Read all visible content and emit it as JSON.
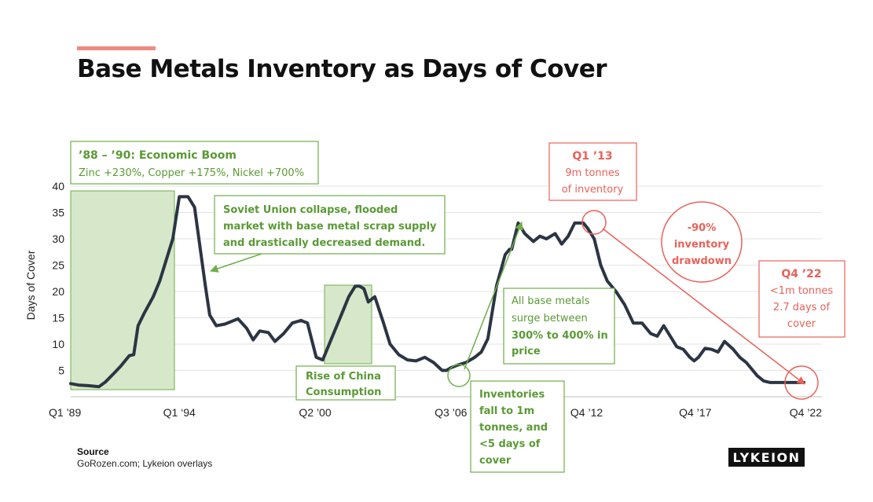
{
  "title": "Base Metals Inventory as Days of Cover",
  "source": {
    "label": "Source",
    "text": "GoRozen.com; Lykeion overlays"
  },
  "logo": "LYKEION",
  "colors": {
    "line": "#2B3544",
    "green": "#6FAE4A",
    "green_text": "#5A9A35",
    "green_fill": "#D6E8C9",
    "red": "#E8625A",
    "accent": "#EE8A80"
  },
  "chart_data": {
    "type": "line",
    "title": "Base Metals Inventory as Days of Cover",
    "ylabel": "Days of Cover",
    "xlabel": "",
    "ylim": [
      0,
      40
    ],
    "yticks": [
      5,
      10,
      15,
      20,
      25,
      30,
      35,
      40
    ],
    "grid": true,
    "xtick_labels": [
      {
        "label": "Q1 ’89",
        "year": 1989.0
      },
      {
        "label": "Q1 ‘94",
        "year": 1994.0
      },
      {
        "label": "Q2 ’00",
        "year": 2000.25
      },
      {
        "label": "Q3 ’06",
        "year": 2006.5
      },
      {
        "label": "Q4 ’12",
        "year": 2012.75
      },
      {
        "label": "Q4 ’17",
        "year": 2017.75
      },
      {
        "label": "Q4 ’22",
        "year": 2022.75
      }
    ],
    "series": [
      {
        "x": [
          1989.0,
          1989.4,
          1989.8,
          1990.3,
          1990.6,
          1991.0,
          1991.3,
          1991.7,
          1991.9,
          1992.1,
          1992.4,
          1992.8,
          1993.1,
          1993.4,
          1993.7,
          1994.0,
          1994.4,
          1994.7,
          1994.9,
          1995.2,
          1995.4,
          1995.7,
          1996.1,
          1996.7,
          1997.1,
          1997.4,
          1997.7,
          1998.1,
          1998.4,
          1998.8,
          1999.2,
          1999.6,
          1999.9,
          2000.3,
          2000.6,
          2000.9,
          2001.2,
          2001.5,
          2001.8,
          2002.1,
          2002.3,
          2002.5,
          2002.7,
          2003.0,
          2003.4,
          2003.7,
          2004.1,
          2004.5,
          2004.9,
          2005.3,
          2005.7,
          2006.1,
          2006.3,
          2006.5,
          2006.8,
          2007.2,
          2007.6,
          2007.9,
          2008.2,
          2008.4,
          2008.6,
          2008.8,
          2009.0,
          2009.2,
          2009.3,
          2009.6,
          2009.9,
          2010.3,
          2010.6,
          2010.9,
          2011.3,
          2011.6,
          2011.9,
          2012.2,
          2012.4,
          2012.6,
          2012.8,
          2013.1,
          2013.4,
          2013.7,
          2014.1,
          2014.5,
          2014.9,
          2015.3,
          2015.7,
          2016.0,
          2016.3,
          2016.6,
          2016.9,
          2017.2,
          2017.5,
          2017.7,
          2017.9,
          2018.2,
          2018.5,
          2018.8,
          2019.1,
          2019.5,
          2019.8,
          2020.1,
          2020.3,
          2020.6,
          2020.9,
          2021.2,
          2021.5,
          2021.9,
          2022.2,
          2022.5,
          2022.75
        ],
        "y": [
          2.5,
          2.2,
          2.1,
          1.9,
          2.8,
          4.5,
          5.8,
          7.8,
          8.0,
          13.5,
          16.0,
          19.0,
          22.0,
          26.0,
          30.0,
          38.0,
          38.0,
          36.0,
          30.0,
          21.0,
          15.5,
          13.5,
          13.8,
          14.8,
          13.0,
          10.8,
          12.5,
          12.2,
          10.5,
          12.0,
          14.0,
          14.5,
          14.0,
          7.5,
          7.0,
          10.0,
          13.0,
          16.0,
          19.0,
          21.0,
          21.0,
          20.5,
          18.0,
          19.0,
          14.0,
          10.0,
          8.0,
          7.0,
          6.8,
          7.5,
          6.5,
          5.0,
          5.0,
          5.5,
          6.0,
          6.5,
          7.5,
          8.5,
          11.0,
          16.0,
          21.0,
          24.0,
          27.0,
          28.0,
          28.0,
          33.0,
          31.0,
          29.5,
          30.5,
          30.0,
          31.0,
          29.0,
          30.5,
          33.0,
          33.0,
          33.0,
          32.0,
          30.0,
          25.0,
          22.0,
          20.0,
          17.5,
          14.0,
          14.0,
          12.0,
          11.5,
          13.5,
          11.5,
          9.5,
          9.0,
          7.5,
          6.8,
          7.5,
          9.2,
          9.0,
          8.5,
          10.5,
          9.0,
          7.5,
          6.5,
          5.5,
          4.0,
          3.0,
          2.7,
          2.7,
          2.7,
          2.7,
          2.7,
          2.7
        ]
      }
    ]
  },
  "annotations": {
    "boom": {
      "title": "’88 – ’90: Economic Boom",
      "text": "Zinc +230%, Copper +175%, Nickel +700%"
    },
    "soviet": {
      "lines": [
        "Soviet Union collapse, flooded",
        "market with base metal scrap supply",
        "and drastically decreased demand."
      ]
    },
    "china": {
      "lines": [
        "Rise of China",
        "Consumption"
      ]
    },
    "surge": {
      "line1": "All base metals",
      "line2": "surge between",
      "line3": "300% to 400% in",
      "line4": "price"
    },
    "inventories": {
      "lines": [
        "Inventories",
        "fall to 1m",
        "tonnes, and",
        "<5 days of",
        "cover"
      ]
    },
    "q113": {
      "title": "Q1 ’13",
      "line1": "9m tonnes",
      "line2": "of inventory"
    },
    "drawdown": {
      "lines": [
        "-90%",
        "inventory",
        "drawdown"
      ]
    },
    "q422": {
      "title": "Q4 ’22",
      "line1": "<1m tonnes",
      "line2": "2.7 days of",
      "line3": "cover"
    }
  }
}
